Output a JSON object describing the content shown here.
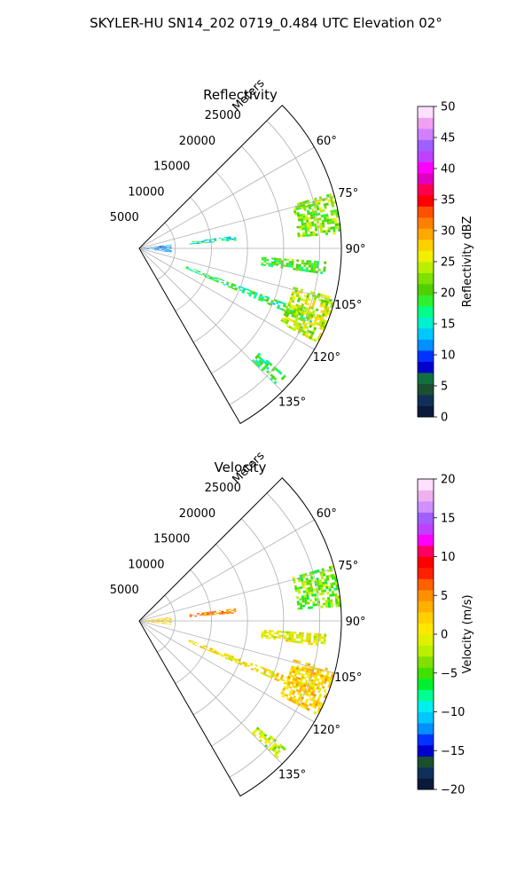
{
  "figure": {
    "title": "SKYLER-HU  SN14_202  0719_0.484 UTC Elevation 02°"
  },
  "chart_data": [
    {
      "type": "heatmap",
      "subtype": "polar-sector (PPI radar scan)",
      "title": "Reflectivity",
      "radial_axis_label": "Meters",
      "radial_ticks": [
        "5000",
        "10000",
        "15000",
        "20000",
        "25000"
      ],
      "radial_tick_values": [
        5000,
        10000,
        15000,
        20000,
        25000
      ],
      "rmax": 28000,
      "azimuth_range_deg": [
        45,
        150
      ],
      "angle_ticks": [
        "60°",
        "75°",
        "90°",
        "105°",
        "120°",
        "135°"
      ],
      "angle_tick_values": [
        60,
        75,
        90,
        105,
        120,
        135
      ],
      "grid": true,
      "colorbar": {
        "label": "Reflectivity dBZ",
        "ticks": [
          "0",
          "5",
          "10",
          "15",
          "20",
          "25",
          "30",
          "35",
          "40",
          "45",
          "50"
        ],
        "tick_values": [
          0,
          5,
          10,
          15,
          20,
          25,
          30,
          35,
          40,
          45,
          50
        ],
        "range": [
          0,
          50
        ],
        "colormap": [
          "#0a1a3a",
          "#10305a",
          "#1a5030",
          "#107040",
          "#0000cc",
          "#0033ff",
          "#0090ff",
          "#00c8ff",
          "#00f0d0",
          "#00ff88",
          "#2ef02e",
          "#50d000",
          "#80e000",
          "#b8f000",
          "#f0f000",
          "#ffd000",
          "#ffa800",
          "#ff8000",
          "#ff5000",
          "#ff0000",
          "#ff0050",
          "#e000c0",
          "#ff00ff",
          "#c040ff",
          "#a060ff",
          "#d080ff",
          "#f0a0f0",
          "#ffe0ff"
        ]
      },
      "features": [
        {
          "az": 90,
          "r0": 0,
          "r1": 4500,
          "width_deg": 14,
          "level": 12
        },
        {
          "az": 84,
          "r0": 7000,
          "r1": 13500,
          "width_deg": 3,
          "level": 15
        },
        {
          "az": 112,
          "r0": 7000,
          "r1": 26000,
          "width_deg": 3,
          "level": 18
        },
        {
          "az": 80,
          "r0": 22000,
          "r1": 28000,
          "width_deg": 12,
          "level": 22
        },
        {
          "az": 96,
          "r0": 17000,
          "r1": 26000,
          "width_deg": 4,
          "level": 20
        },
        {
          "az": 111,
          "r0": 22000,
          "r1": 28000,
          "width_deg": 14,
          "level": 24
        },
        {
          "az": 133,
          "r0": 22000,
          "r1": 27000,
          "width_deg": 4,
          "level": 18
        }
      ]
    },
    {
      "type": "heatmap",
      "subtype": "polar-sector (PPI radar scan)",
      "title": "Velocity",
      "radial_axis_label": "Meters",
      "radial_ticks": [
        "5000",
        "10000",
        "15000",
        "20000",
        "25000"
      ],
      "radial_tick_values": [
        5000,
        10000,
        15000,
        20000,
        25000
      ],
      "rmax": 28000,
      "azimuth_range_deg": [
        45,
        150
      ],
      "angle_ticks": [
        "60°",
        "75°",
        "90°",
        "105°",
        "120°",
        "135°"
      ],
      "angle_tick_values": [
        60,
        75,
        90,
        105,
        120,
        135
      ],
      "grid": true,
      "colorbar": {
        "label": "Velocity (m/s)",
        "ticks": [
          "−20",
          "−15",
          "−10",
          "−5",
          "0",
          "5",
          "10",
          "15",
          "20"
        ],
        "tick_values": [
          -20,
          -15,
          -10,
          -5,
          0,
          5,
          10,
          15,
          20
        ],
        "range": [
          -20,
          20
        ],
        "colormap": [
          "#0a1a3a",
          "#10305a",
          "#1a5030",
          "#0000cc",
          "#0033ff",
          "#0090ff",
          "#00c8ff",
          "#00f0f0",
          "#00ff90",
          "#00f030",
          "#40e000",
          "#80e000",
          "#b8f000",
          "#e0f000",
          "#ffe800",
          "#ffd000",
          "#ffb000",
          "#ff9000",
          "#ff6000",
          "#ff2000",
          "#ff0000",
          "#ff0060",
          "#ff00ff",
          "#c040ff",
          "#a060ff",
          "#d090ff",
          "#f0b0f0",
          "#ffe0ff"
        ]
      },
      "features": [
        {
          "az": 90,
          "r0": 0,
          "r1": 4500,
          "width_deg": 14,
          "level": 2
        },
        {
          "az": 84,
          "r0": 7000,
          "r1": 13500,
          "width_deg": 3,
          "level": 5
        },
        {
          "az": 112,
          "r0": 7000,
          "r1": 26000,
          "width_deg": 3,
          "level": 1
        },
        {
          "az": 80,
          "r0": 22000,
          "r1": 28000,
          "width_deg": 12,
          "level": -4
        },
        {
          "az": 96,
          "r0": 17000,
          "r1": 26000,
          "width_deg": 4,
          "level": 0
        },
        {
          "az": 111,
          "r0": 22000,
          "r1": 28000,
          "width_deg": 14,
          "level": 2
        },
        {
          "az": 133,
          "r0": 22000,
          "r1": 27000,
          "width_deg": 4,
          "level": -2
        }
      ]
    }
  ]
}
